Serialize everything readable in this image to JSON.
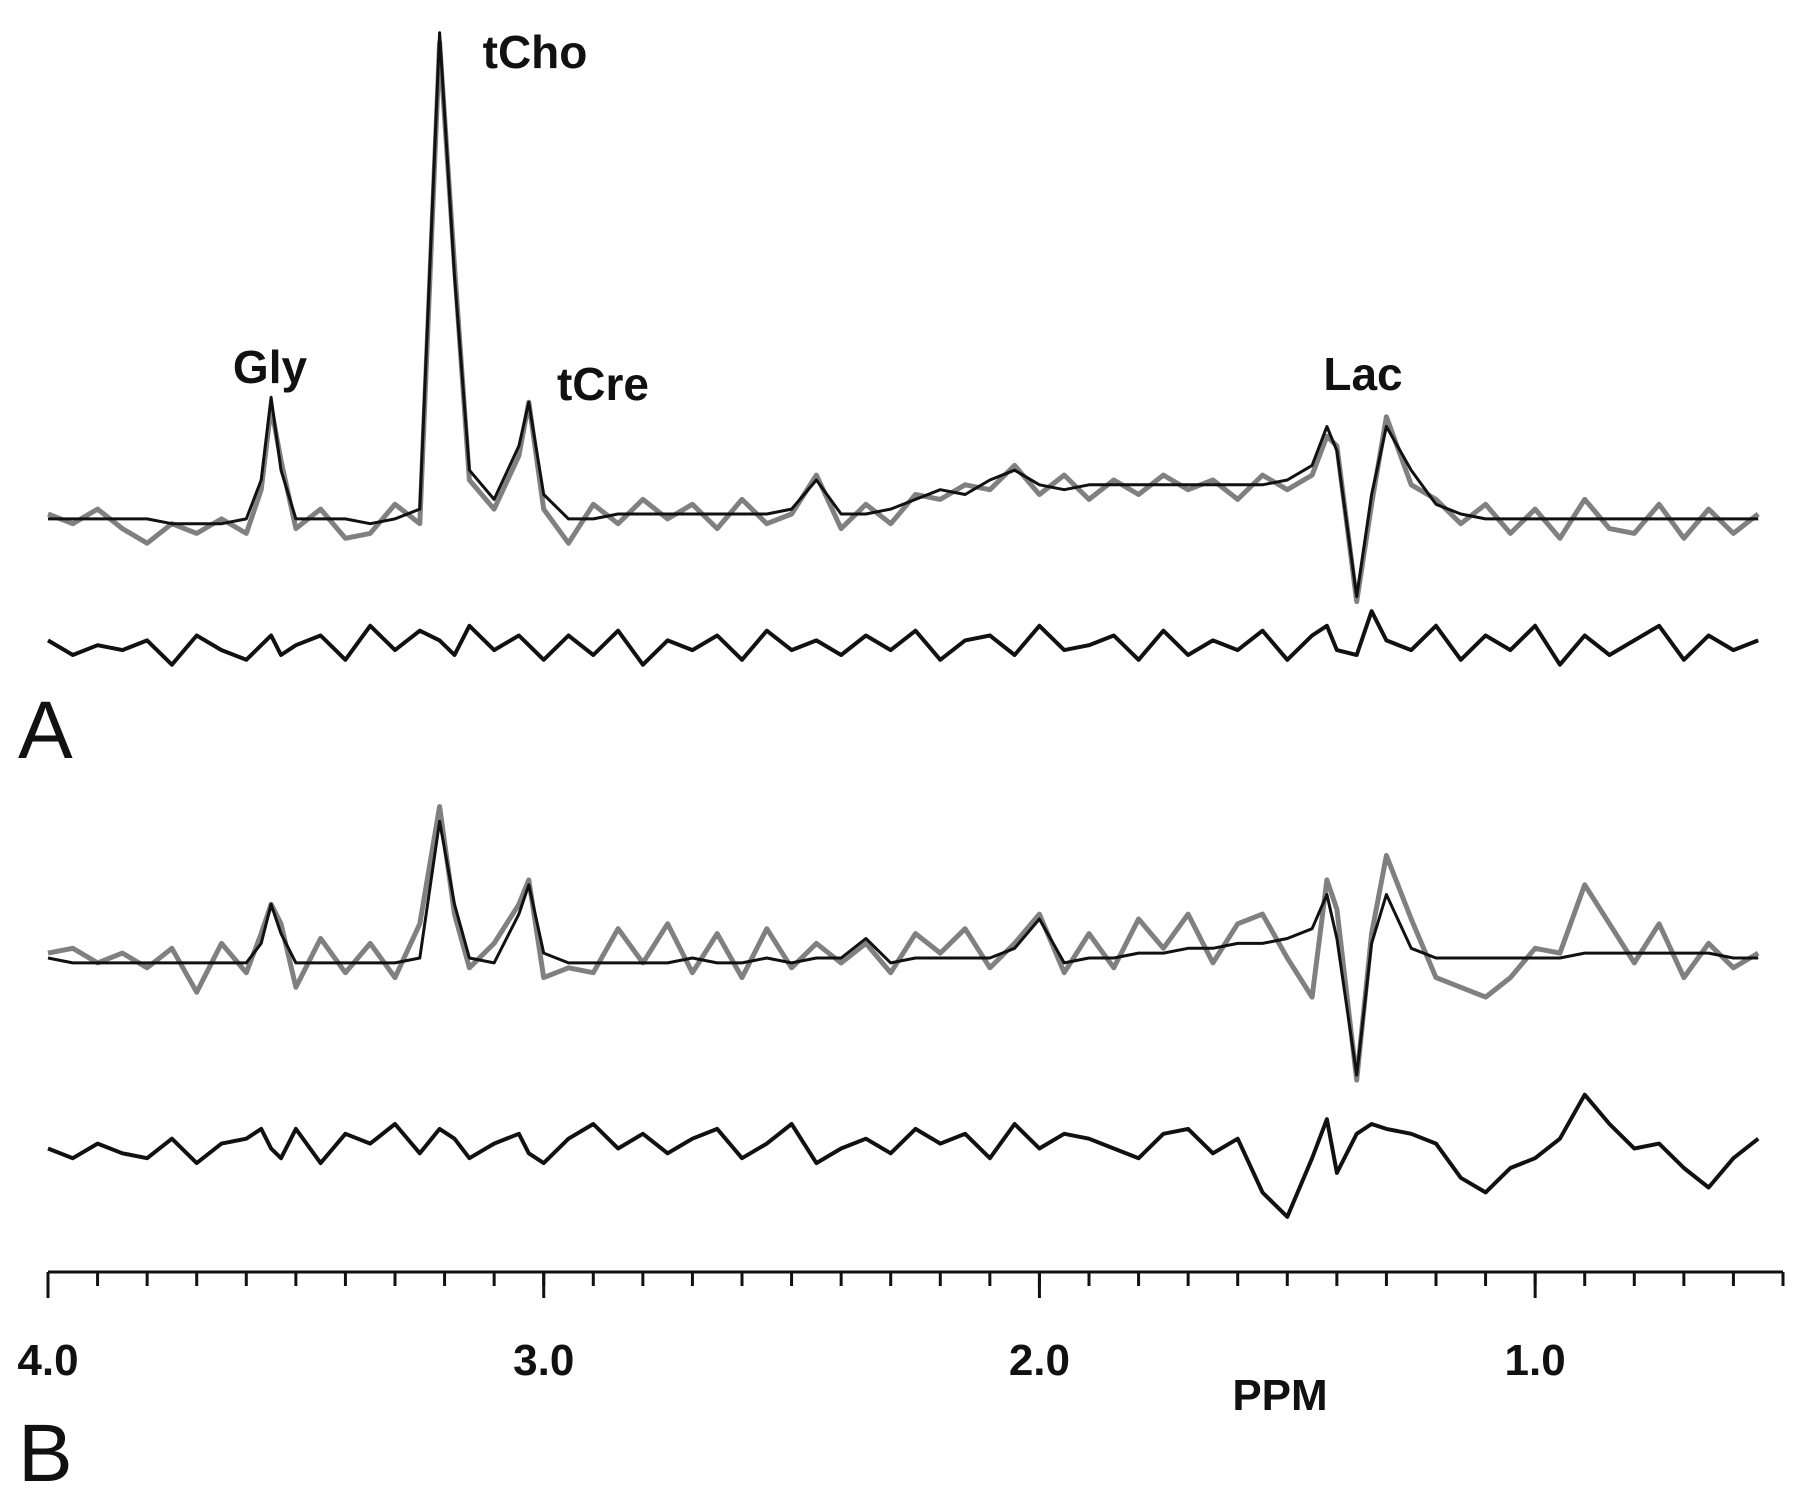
{
  "chart_data": [
    {
      "type": "line",
      "panel": "A",
      "annotations": [
        "Gly",
        "tCho",
        "tCre",
        "Lac"
      ],
      "x": [
        4.0,
        3.95,
        3.9,
        3.85,
        3.8,
        3.75,
        3.7,
        3.65,
        3.6,
        3.57,
        3.55,
        3.53,
        3.5,
        3.45,
        3.4,
        3.35,
        3.3,
        3.25,
        3.21,
        3.18,
        3.15,
        3.1,
        3.05,
        3.03,
        3.0,
        2.95,
        2.9,
        2.85,
        2.8,
        2.75,
        2.7,
        2.65,
        2.6,
        2.55,
        2.5,
        2.45,
        2.4,
        2.35,
        2.3,
        2.25,
        2.2,
        2.15,
        2.1,
        2.05,
        2.0,
        1.95,
        1.9,
        1.85,
        1.8,
        1.75,
        1.7,
        1.65,
        1.6,
        1.55,
        1.5,
        1.45,
        1.42,
        1.4,
        1.36,
        1.33,
        1.3,
        1.25,
        1.2,
        1.15,
        1.1,
        1.05,
        1.0,
        0.95,
        0.9,
        0.85,
        0.8,
        0.75,
        0.7,
        0.65,
        0.6,
        0.55
      ],
      "xlim": [
        4.0,
        0.5
      ],
      "ylim": [
        -35,
        102
      ],
      "series": [
        {
          "color": "#808080",
          "width": 5,
          "values": [
            1,
            -1,
            2,
            -2,
            -5,
            -1,
            -3,
            0,
            -3,
            6,
            23,
            12,
            -2,
            2,
            -4,
            -3,
            3,
            -1,
            98,
            52,
            8,
            2,
            13,
            24,
            2,
            -5,
            3,
            -1,
            4,
            0,
            3,
            -2,
            4,
            -1,
            1,
            9,
            -2,
            3,
            -1,
            5,
            4,
            7,
            6,
            11,
            5,
            9,
            4,
            8,
            5,
            9,
            6,
            8,
            4,
            9,
            6,
            9,
            17,
            15,
            -17,
            3,
            21,
            7,
            4,
            -1,
            3,
            -3,
            2,
            -4,
            4,
            -2,
            -3,
            3,
            -4,
            2,
            -3,
            1
          ]
        },
        {
          "color": "#111111",
          "width": 3,
          "values": [
            0,
            0,
            0,
            0,
            0,
            -1,
            -1,
            -1,
            0,
            8,
            25,
            10,
            0,
            0,
            0,
            -1,
            0,
            2,
            100,
            50,
            10,
            4,
            15,
            24,
            5,
            0,
            0,
            1,
            1,
            1,
            1,
            1,
            1,
            1,
            2,
            8,
            1,
            1,
            2,
            4,
            6,
            5,
            8,
            10,
            7,
            6,
            7,
            7,
            7,
            7,
            7,
            7,
            7,
            7,
            8,
            11,
            19,
            14,
            -16,
            5,
            19,
            10,
            3,
            1,
            0,
            0,
            0,
            0,
            0,
            0,
            0,
            0,
            0,
            0,
            0,
            0
          ]
        },
        {
          "color": "#111111",
          "width": 4,
          "values": [
            -25,
            -28,
            -26,
            -27,
            -25,
            -30,
            -24,
            -27,
            -29,
            -26,
            -24,
            -28,
            -26,
            -24,
            -29,
            -22,
            -27,
            -23,
            -25,
            -28,
            -22,
            -27,
            -24,
            -26,
            -29,
            -24,
            -28,
            -23,
            -30,
            -25,
            -27,
            -24,
            -29,
            -23,
            -27,
            -25,
            -28,
            -24,
            -27,
            -23,
            -29,
            -25,
            -24,
            -28,
            -22,
            -27,
            -26,
            -24,
            -29,
            -23,
            -28,
            -25,
            -27,
            -23,
            -29,
            -24,
            -22,
            -27,
            -28,
            -19,
            -25,
            -27,
            -22,
            -29,
            -24,
            -27,
            -22,
            -30,
            -24,
            -28,
            -25,
            -22,
            -29,
            -24,
            -27,
            -25
          ]
        }
      ]
    },
    {
      "type": "line",
      "panel": "B",
      "xlabel": "PPM",
      "x": [
        4.0,
        3.95,
        3.9,
        3.85,
        3.8,
        3.75,
        3.7,
        3.65,
        3.6,
        3.57,
        3.55,
        3.53,
        3.5,
        3.45,
        3.4,
        3.35,
        3.3,
        3.25,
        3.21,
        3.18,
        3.15,
        3.1,
        3.05,
        3.03,
        3.0,
        2.95,
        2.9,
        2.85,
        2.8,
        2.75,
        2.7,
        2.65,
        2.6,
        2.55,
        2.5,
        2.45,
        2.4,
        2.35,
        2.3,
        2.25,
        2.2,
        2.15,
        2.1,
        2.05,
        2.0,
        1.95,
        1.9,
        1.85,
        1.8,
        1.75,
        1.7,
        1.65,
        1.6,
        1.55,
        1.5,
        1.45,
        1.42,
        1.4,
        1.36,
        1.33,
        1.3,
        1.25,
        1.2,
        1.15,
        1.1,
        1.05,
        1.0,
        0.95,
        0.9,
        0.85,
        0.8,
        0.75,
        0.7,
        0.65,
        0.6,
        0.55
      ],
      "xlim": [
        4.0,
        0.5
      ],
      "ylim": [
        -59,
        35
      ],
      "xticks": [
        {
          "value": 4,
          "label": "4.0"
        },
        {
          "value": 3,
          "label": "3.0"
        },
        {
          "value": 2,
          "label": "2.0"
        },
        {
          "value": 1,
          "label": "1.0"
        }
      ],
      "xminorticks": [
        4.0,
        3.9,
        3.8,
        3.7,
        3.6,
        3.5,
        3.4,
        3.3,
        3.2,
        3.1,
        3.0,
        2.9,
        2.8,
        2.7,
        2.6,
        2.5,
        2.4,
        2.3,
        2.2,
        2.1,
        2.0,
        1.9,
        1.8,
        1.7,
        1.6,
        1.5,
        1.4,
        1.3,
        1.2,
        1.1,
        1.0,
        0.9,
        0.8,
        0.7,
        0.6,
        0.5
      ],
      "series": [
        {
          "color": "#808080",
          "width": 5,
          "values": [
            2,
            3,
            0,
            2,
            -1,
            3,
            -6,
            4,
            -2,
            6,
            12,
            8,
            -5,
            5,
            -2,
            4,
            -3,
            8,
            32,
            10,
            -1,
            4,
            12,
            17,
            -3,
            -1,
            -2,
            7,
            0,
            8,
            -2,
            6,
            -3,
            7,
            -1,
            4,
            0,
            4,
            -2,
            6,
            2,
            7,
            -1,
            4,
            10,
            -2,
            6,
            -1,
            9,
            3,
            10,
            0,
            8,
            10,
            1,
            -7,
            17,
            11,
            -24,
            6,
            22,
            9,
            -3,
            -5,
            -7,
            -3,
            3,
            2,
            16,
            8,
            0,
            8,
            -3,
            4,
            -1,
            2
          ]
        },
        {
          "color": "#111111",
          "width": 3,
          "values": [
            1,
            0,
            0,
            0,
            0,
            0,
            0,
            0,
            0,
            4,
            12,
            6,
            0,
            0,
            0,
            0,
            0,
            1,
            29,
            12,
            1,
            0,
            10,
            16,
            2,
            0,
            0,
            0,
            0,
            0,
            1,
            0,
            0,
            1,
            0,
            1,
            1,
            5,
            0,
            1,
            1,
            1,
            1,
            3,
            9,
            0,
            1,
            1,
            2,
            2,
            3,
            3,
            4,
            4,
            5,
            7,
            14,
            5,
            -23,
            4,
            14,
            3,
            1,
            1,
            1,
            1,
            1,
            1,
            2,
            2,
            2,
            2,
            2,
            2,
            1,
            1
          ]
        },
        {
          "color": "#111111",
          "width": 4,
          "values": [
            -38,
            -40,
            -37,
            -39,
            -40,
            -36,
            -41,
            -37,
            -36,
            -34,
            -38,
            -40,
            -34,
            -41,
            -35,
            -37,
            -33,
            -39,
            -34,
            -36,
            -40,
            -37,
            -35,
            -39,
            -41,
            -36,
            -33,
            -38,
            -35,
            -39,
            -36,
            -34,
            -40,
            -37,
            -33,
            -41,
            -38,
            -36,
            -39,
            -34,
            -37,
            -35,
            -40,
            -33,
            -38,
            -35,
            -36,
            -38,
            -40,
            -35,
            -34,
            -39,
            -36,
            -47,
            -52,
            -40,
            -32,
            -43,
            -35,
            -33,
            -34,
            -35,
            -37,
            -44,
            -47,
            -42,
            -40,
            -36,
            -27,
            -33,
            -38,
            -37,
            -42,
            -46,
            -40,
            -36
          ]
        }
      ]
    }
  ]
}
